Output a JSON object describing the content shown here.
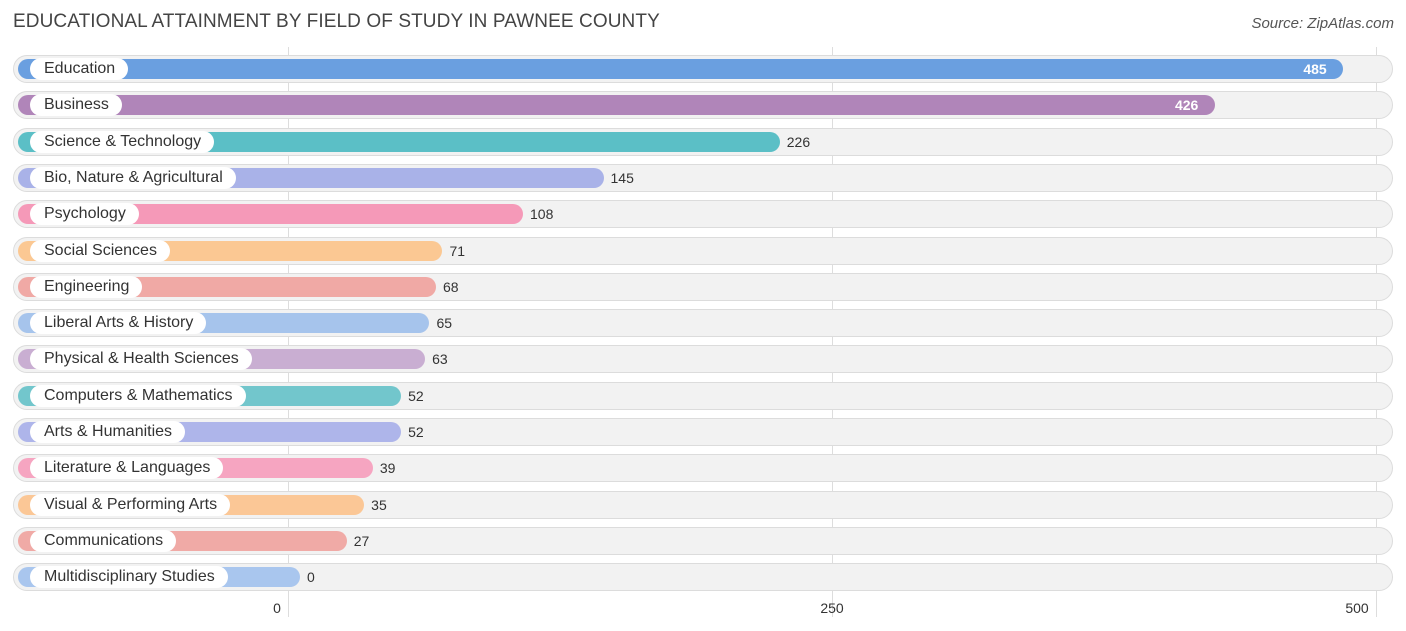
{
  "header": {
    "title": "EDUCATIONAL ATTAINMENT BY FIELD OF STUDY IN PAWNEE COUNTY",
    "source": "Source: ZipAtlas.com"
  },
  "chart_data": {
    "type": "bar",
    "orientation": "horizontal",
    "title": "EDUCATIONAL ATTAINMENT BY FIELD OF STUDY IN PAWNEE COUNTY",
    "xlabel": "",
    "ylabel": "",
    "xlim": [
      0,
      500
    ],
    "ticks": [
      0,
      250,
      500
    ],
    "tick_labels": [
      "0",
      "250",
      "500"
    ],
    "grid": true,
    "legend": "none",
    "categories": [
      "Education",
      "Business",
      "Science & Technology",
      "Bio, Nature & Agricultural",
      "Psychology",
      "Social Sciences",
      "Engineering",
      "Liberal Arts & History",
      "Physical & Health Sciences",
      "Computers & Mathematics",
      "Arts & Humanities",
      "Literature & Languages",
      "Visual & Performing Arts",
      "Communications",
      "Multidisciplinary Studies"
    ],
    "values": [
      485,
      426,
      226,
      145,
      108,
      71,
      68,
      65,
      63,
      52,
      52,
      39,
      35,
      27,
      0
    ],
    "value_labels": [
      "485",
      "426",
      "226",
      "145",
      "108",
      "71",
      "68",
      "65",
      "63",
      "52",
      "52",
      "39",
      "35",
      "27",
      "0"
    ],
    "colors": [
      "#6a9fe0",
      "#b085b9",
      "#5bbfc6",
      "#a9b2e8",
      "#f599b8",
      "#fbc893",
      "#f0a9a5",
      "#a6c4ec",
      "#c9aed2",
      "#72c6cc",
      "#aeb5ea",
      "#f6a5c1",
      "#fbc796",
      "#f0aaa6",
      "#a9c6ee"
    ]
  }
}
